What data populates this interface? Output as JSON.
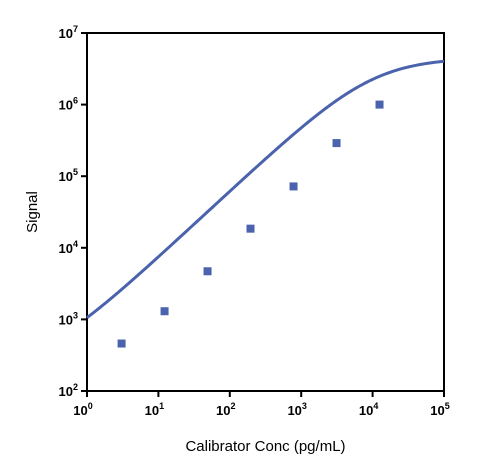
{
  "chart_data": {
    "type": "scatter",
    "xlabel": "Calibrator Conc (pg/mL)",
    "ylabel": "Signal",
    "x_scale": "log",
    "y_scale": "log",
    "xlim": [
      1,
      100000
    ],
    "ylim": [
      100,
      10000000
    ],
    "x_ticks": [
      {
        "base": "10",
        "exp": "0"
      },
      {
        "base": "10",
        "exp": "1"
      },
      {
        "base": "10",
        "exp": "2"
      },
      {
        "base": "10",
        "exp": "3"
      },
      {
        "base": "10",
        "exp": "4"
      },
      {
        "base": "10",
        "exp": "5"
      }
    ],
    "y_ticks": [
      {
        "base": "10",
        "exp": "2"
      },
      {
        "base": "10",
        "exp": "3"
      },
      {
        "base": "10",
        "exp": "4"
      },
      {
        "base": "10",
        "exp": "5"
      },
      {
        "base": "10",
        "exp": "6"
      },
      {
        "base": "10",
        "exp": "7"
      }
    ],
    "series": [
      {
        "points": [
          {
            "x": 3.05,
            "y": 460
          },
          {
            "x": 12.2,
            "y": 1300
          },
          {
            "x": 48.8,
            "y": 4700
          },
          {
            "x": 195,
            "y": 18500
          },
          {
            "x": 781,
            "y": 72000
          },
          {
            "x": 3125,
            "y": 290000
          },
          {
            "x": 12500,
            "y": 1000000
          }
        ]
      }
    ],
    "fit_curve": {
      "model": "4PL",
      "bottom": 200,
      "top": 4500000,
      "ec50": 10000,
      "hill": 0.93,
      "x_range": [
        1,
        100000
      ]
    },
    "colors": {
      "series": "#4B62AC",
      "axis": "#000000"
    },
    "grid": false,
    "legend": "none"
  }
}
